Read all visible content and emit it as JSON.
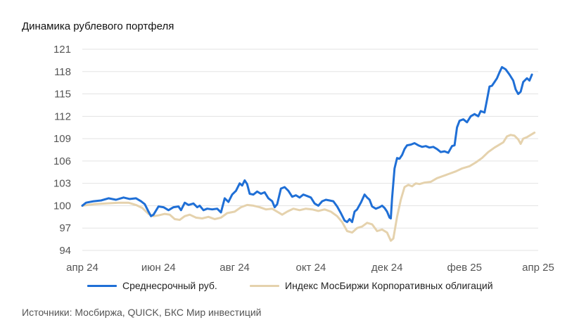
{
  "chart_data": {
    "type": "line",
    "title": "Динамика рублевого портфеля",
    "xlabel": "",
    "ylabel": "",
    "ylim": [
      94,
      121
    ],
    "yticks": [
      94,
      97,
      100,
      103,
      106,
      109,
      112,
      115,
      118,
      121
    ],
    "xlim": [
      "2024-04-01",
      "2025-04-01"
    ],
    "x_tick_labels": [
      {
        "date": "2024-04-01",
        "label": "апр 24"
      },
      {
        "date": "2024-06-01",
        "label": "июн 24"
      },
      {
        "date": "2024-08-01",
        "label": "авг 24"
      },
      {
        "date": "2024-10-01",
        "label": "окт 24"
      },
      {
        "date": "2024-12-01",
        "label": "дек 24"
      },
      {
        "date": "2025-02-01",
        "label": "фев 25"
      },
      {
        "date": "2025-04-01",
        "label": "апр 25"
      }
    ],
    "grid": true,
    "legend_position": "bottom",
    "series": [
      {
        "name": "Среднесрочный руб.",
        "color": "#1f6fd6",
        "points": [
          [
            "2024-04-01",
            100.0
          ],
          [
            "2024-04-04",
            100.4
          ],
          [
            "2024-04-10",
            100.6
          ],
          [
            "2024-04-16",
            100.7
          ],
          [
            "2024-04-22",
            101.0
          ],
          [
            "2024-04-28",
            100.8
          ],
          [
            "2024-05-04",
            101.1
          ],
          [
            "2024-05-09",
            100.9
          ],
          [
            "2024-05-14",
            101.0
          ],
          [
            "2024-05-18",
            100.6
          ],
          [
            "2024-05-21",
            100.2
          ],
          [
            "2024-05-24",
            99.2
          ],
          [
            "2024-05-26",
            98.6
          ],
          [
            "2024-05-28",
            98.8
          ],
          [
            "2024-06-01",
            99.9
          ],
          [
            "2024-06-05",
            99.8
          ],
          [
            "2024-06-09",
            99.4
          ],
          [
            "2024-06-13",
            99.8
          ],
          [
            "2024-06-17",
            99.9
          ],
          [
            "2024-06-19",
            99.4
          ],
          [
            "2024-06-22",
            100.4
          ],
          [
            "2024-06-25",
            100.1
          ],
          [
            "2024-06-29",
            100.3
          ],
          [
            "2024-07-02",
            99.8
          ],
          [
            "2024-07-04",
            100.0
          ],
          [
            "2024-07-07",
            99.4
          ],
          [
            "2024-07-10",
            99.6
          ],
          [
            "2024-07-14",
            99.5
          ],
          [
            "2024-07-18",
            99.6
          ],
          [
            "2024-07-21",
            99.1
          ],
          [
            "2024-07-24",
            101.0
          ],
          [
            "2024-07-27",
            100.5
          ],
          [
            "2024-07-30",
            101.5
          ],
          [
            "2024-08-02",
            102.0
          ],
          [
            "2024-08-05",
            103.0
          ],
          [
            "2024-08-07",
            102.7
          ],
          [
            "2024-08-09",
            103.4
          ],
          [
            "2024-08-11",
            102.9
          ],
          [
            "2024-08-13",
            101.6
          ],
          [
            "2024-08-16",
            101.5
          ],
          [
            "2024-08-19",
            101.9
          ],
          [
            "2024-08-22",
            101.6
          ],
          [
            "2024-08-25",
            101.8
          ],
          [
            "2024-08-28",
            101.0
          ],
          [
            "2024-08-31",
            100.6
          ],
          [
            "2024-09-02",
            99.8
          ],
          [
            "2024-09-04",
            100.2
          ],
          [
            "2024-09-07",
            102.3
          ],
          [
            "2024-09-10",
            102.5
          ],
          [
            "2024-09-13",
            102.0
          ],
          [
            "2024-09-16",
            101.2
          ],
          [
            "2024-09-19",
            101.4
          ],
          [
            "2024-09-22",
            101.1
          ],
          [
            "2024-09-25",
            101.5
          ],
          [
            "2024-09-28",
            101.3
          ],
          [
            "2024-10-01",
            101.1
          ],
          [
            "2024-10-04",
            100.3
          ],
          [
            "2024-10-07",
            100.0
          ],
          [
            "2024-10-10",
            100.6
          ],
          [
            "2024-10-13",
            100.8
          ],
          [
            "2024-10-16",
            100.7
          ],
          [
            "2024-10-19",
            100.6
          ],
          [
            "2024-10-22",
            99.9
          ],
          [
            "2024-10-25",
            99.0
          ],
          [
            "2024-10-28",
            98.0
          ],
          [
            "2024-10-30",
            97.8
          ],
          [
            "2024-11-01",
            98.2
          ],
          [
            "2024-11-03",
            97.8
          ],
          [
            "2024-11-05",
            99.2
          ],
          [
            "2024-11-07",
            99.5
          ],
          [
            "2024-11-10",
            100.4
          ],
          [
            "2024-11-13",
            101.5
          ],
          [
            "2024-11-15",
            101.1
          ],
          [
            "2024-11-17",
            100.8
          ],
          [
            "2024-11-19",
            99.9
          ],
          [
            "2024-11-22",
            99.6
          ],
          [
            "2024-11-25",
            99.8
          ],
          [
            "2024-11-27",
            100.0
          ],
          [
            "2024-11-29",
            99.7
          ],
          [
            "2024-12-01",
            99.2
          ],
          [
            "2024-12-03",
            98.4
          ],
          [
            "2024-12-04",
            98.3
          ],
          [
            "2024-12-05",
            101.0
          ],
          [
            "2024-12-07",
            105.0
          ],
          [
            "2024-12-09",
            106.4
          ],
          [
            "2024-12-11",
            106.3
          ],
          [
            "2024-12-13",
            106.8
          ],
          [
            "2024-12-15",
            107.6
          ],
          [
            "2024-12-17",
            108.1
          ],
          [
            "2024-12-20",
            108.2
          ],
          [
            "2024-12-23",
            108.4
          ],
          [
            "2024-12-26",
            108.1
          ],
          [
            "2024-12-29",
            107.9
          ],
          [
            "2025-01-01",
            108.0
          ],
          [
            "2025-01-04",
            107.8
          ],
          [
            "2025-01-07",
            107.9
          ],
          [
            "2025-01-10",
            107.6
          ],
          [
            "2025-01-13",
            107.2
          ],
          [
            "2025-01-16",
            107.3
          ],
          [
            "2025-01-19",
            107.1
          ],
          [
            "2025-01-22",
            108.0
          ],
          [
            "2025-01-24",
            108.1
          ],
          [
            "2025-01-26",
            110.5
          ],
          [
            "2025-01-28",
            111.4
          ],
          [
            "2025-01-31",
            111.6
          ],
          [
            "2025-02-03",
            111.2
          ],
          [
            "2025-02-06",
            112.0
          ],
          [
            "2025-02-09",
            112.3
          ],
          [
            "2025-02-12",
            112.0
          ],
          [
            "2025-02-14",
            112.7
          ],
          [
            "2025-02-17",
            112.5
          ],
          [
            "2025-02-19",
            114.2
          ],
          [
            "2025-02-21",
            116.0
          ],
          [
            "2025-02-23",
            116.1
          ],
          [
            "2025-02-25",
            116.6
          ],
          [
            "2025-02-27",
            117.1
          ],
          [
            "2025-03-01",
            117.9
          ],
          [
            "2025-03-03",
            118.6
          ],
          [
            "2025-03-06",
            118.3
          ],
          [
            "2025-03-09",
            117.6
          ],
          [
            "2025-03-12",
            116.8
          ],
          [
            "2025-03-14",
            115.6
          ],
          [
            "2025-03-16",
            115.0
          ],
          [
            "2025-03-18",
            115.3
          ],
          [
            "2025-03-20",
            116.6
          ],
          [
            "2025-03-23",
            117.1
          ],
          [
            "2025-03-25",
            116.8
          ],
          [
            "2025-03-27",
            117.6
          ]
        ]
      },
      {
        "name": "Индекс МосБиржи Корпоративных облигаций",
        "color": "#e5d2ad",
        "points": [
          [
            "2024-04-01",
            100.0
          ],
          [
            "2024-04-10",
            100.2
          ],
          [
            "2024-04-20",
            100.3
          ],
          [
            "2024-04-30",
            100.4
          ],
          [
            "2024-05-08",
            100.4
          ],
          [
            "2024-05-14",
            100.1
          ],
          [
            "2024-05-19",
            99.7
          ],
          [
            "2024-05-24",
            98.9
          ],
          [
            "2024-05-28",
            98.6
          ],
          [
            "2024-06-01",
            98.7
          ],
          [
            "2024-06-06",
            98.9
          ],
          [
            "2024-06-10",
            98.8
          ],
          [
            "2024-06-14",
            98.2
          ],
          [
            "2024-06-18",
            98.1
          ],
          [
            "2024-06-22",
            98.6
          ],
          [
            "2024-06-26",
            98.8
          ],
          [
            "2024-07-01",
            98.4
          ],
          [
            "2024-07-06",
            98.3
          ],
          [
            "2024-07-11",
            98.5
          ],
          [
            "2024-07-16",
            98.2
          ],
          [
            "2024-07-21",
            98.4
          ],
          [
            "2024-07-26",
            99.0
          ],
          [
            "2024-08-01",
            99.2
          ],
          [
            "2024-08-06",
            99.8
          ],
          [
            "2024-08-11",
            100.1
          ],
          [
            "2024-08-16",
            100.0
          ],
          [
            "2024-08-21",
            99.8
          ],
          [
            "2024-08-26",
            99.5
          ],
          [
            "2024-08-31",
            99.6
          ],
          [
            "2024-09-04",
            99.2
          ],
          [
            "2024-09-08",
            98.8
          ],
          [
            "2024-09-12",
            99.2
          ],
          [
            "2024-09-17",
            99.6
          ],
          [
            "2024-09-22",
            99.4
          ],
          [
            "2024-09-27",
            99.6
          ],
          [
            "2024-10-02",
            99.5
          ],
          [
            "2024-10-07",
            99.3
          ],
          [
            "2024-10-12",
            99.5
          ],
          [
            "2024-10-17",
            99.2
          ],
          [
            "2024-10-22",
            98.6
          ],
          [
            "2024-10-26",
            97.8
          ],
          [
            "2024-10-30",
            96.6
          ],
          [
            "2024-11-03",
            96.4
          ],
          [
            "2024-11-07",
            97.0
          ],
          [
            "2024-11-11",
            97.2
          ],
          [
            "2024-11-15",
            97.7
          ],
          [
            "2024-11-19",
            97.5
          ],
          [
            "2024-11-23",
            96.6
          ],
          [
            "2024-11-27",
            96.8
          ],
          [
            "2024-12-01",
            96.4
          ],
          [
            "2024-12-04",
            95.3
          ],
          [
            "2024-12-06",
            95.6
          ],
          [
            "2024-12-09",
            98.5
          ],
          [
            "2024-12-12",
            100.8
          ],
          [
            "2024-12-15",
            102.5
          ],
          [
            "2024-12-18",
            102.8
          ],
          [
            "2024-12-21",
            102.6
          ],
          [
            "2024-12-24",
            103.0
          ],
          [
            "2024-12-27",
            102.9
          ],
          [
            "2024-12-31",
            103.1
          ],
          [
            "2025-01-05",
            103.2
          ],
          [
            "2025-01-10",
            103.7
          ],
          [
            "2025-01-15",
            104.0
          ],
          [
            "2025-01-20",
            104.3
          ],
          [
            "2025-01-25",
            104.6
          ],
          [
            "2025-01-30",
            105.0
          ],
          [
            "2025-02-05",
            105.3
          ],
          [
            "2025-02-10",
            105.8
          ],
          [
            "2025-02-15",
            106.4
          ],
          [
            "2025-02-20",
            107.2
          ],
          [
            "2025-02-25",
            107.8
          ],
          [
            "2025-03-01",
            108.2
          ],
          [
            "2025-03-04",
            108.5
          ],
          [
            "2025-03-07",
            109.3
          ],
          [
            "2025-03-10",
            109.5
          ],
          [
            "2025-03-13",
            109.4
          ],
          [
            "2025-03-16",
            108.9
          ],
          [
            "2025-03-18",
            108.3
          ],
          [
            "2025-03-20",
            109.0
          ],
          [
            "2025-03-23",
            109.2
          ],
          [
            "2025-03-26",
            109.5
          ],
          [
            "2025-03-29",
            109.8
          ]
        ]
      }
    ],
    "source_note": "Источники: Мосбиржа, QUICK, БКС Мир инвестиций"
  }
}
